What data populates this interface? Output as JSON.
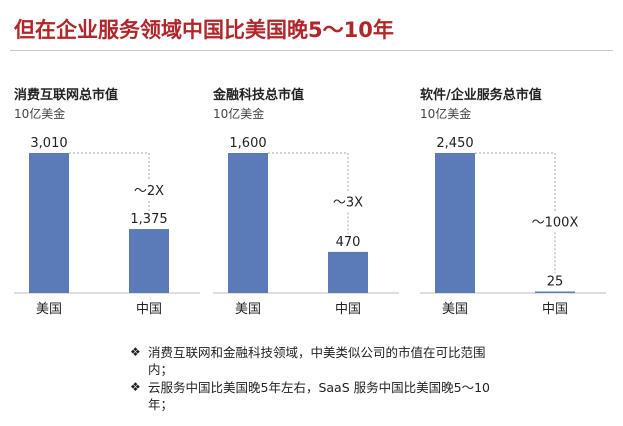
{
  "title": "但在企业服务领域中国比美国晚5～10年",
  "chart_data": [
    {
      "type": "bar",
      "title": "消费互联网总市值",
      "subtitle": "10亿美金",
      "categories": [
        "美国",
        "中国"
      ],
      "values": [
        3010,
        1375
      ],
      "value_labels": [
        "3,010",
        "1,375"
      ],
      "ratio_label": "～2X",
      "color": "#5b7bb8"
    },
    {
      "type": "bar",
      "title": "金融科技总市值",
      "subtitle": "10亿美金",
      "categories": [
        "美国",
        "中国"
      ],
      "values": [
        1600,
        470
      ],
      "value_labels": [
        "1,600",
        "470"
      ],
      "ratio_label": "～3X",
      "color": "#5b7bb8"
    },
    {
      "type": "bar",
      "title": "软件/企业服务总市值",
      "subtitle": "10亿美金",
      "categories": [
        "美国",
        "中国"
      ],
      "values": [
        2450,
        25
      ],
      "value_labels": [
        "2,450",
        "25"
      ],
      "ratio_label": "～100X",
      "color": "#5b7bb8"
    }
  ],
  "notes": {
    "bullet_symbol": "❖",
    "items": [
      "消费互联网和金融科技领域，中美类似公司的市值在可比范围内；",
      "云服务中国比美国晚5年左右，SaaS 服务中国比美国晚5～10年；"
    ]
  }
}
